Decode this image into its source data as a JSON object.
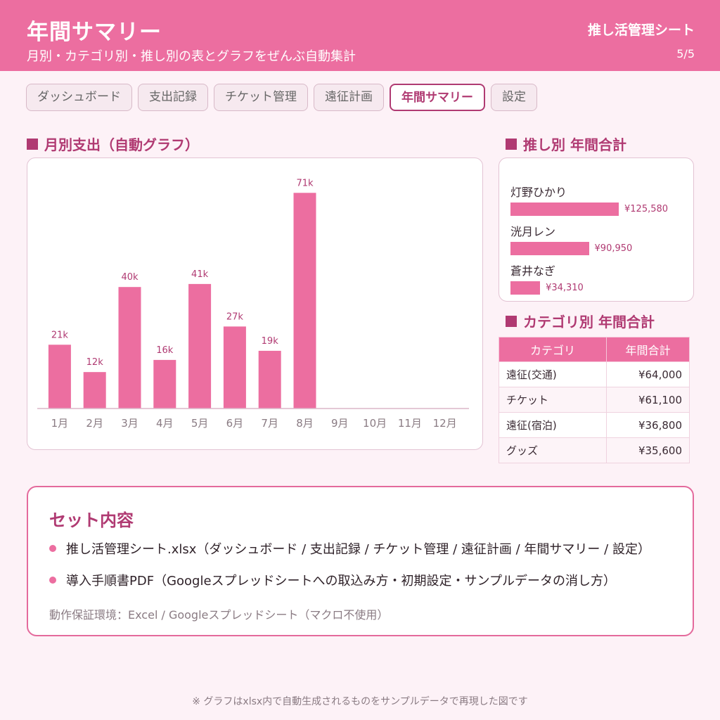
{
  "header": {
    "title": "年間サマリー",
    "subtitle": "月別・カテゴリ別・推し別の表とグラフをぜんぶ自動集計",
    "brand": "推し活管理シート",
    "page": "5/5"
  },
  "tabs": [
    {
      "label": "ダッシュボード",
      "active": false
    },
    {
      "label": "支出記録",
      "active": false
    },
    {
      "label": "チケット管理",
      "active": false
    },
    {
      "label": "遠征計画",
      "active": false
    },
    {
      "label": "年間サマリー",
      "active": true
    },
    {
      "label": "設定",
      "active": false
    }
  ],
  "sections": {
    "monthly": "月別支出（自動グラフ）",
    "oshi": "推し別 年間合計",
    "category": "カテゴリ別 年間合計"
  },
  "chart_data": {
    "type": "bar",
    "categories": [
      "1月",
      "2月",
      "3月",
      "4月",
      "5月",
      "6月",
      "7月",
      "8月",
      "9月",
      "10月",
      "11月",
      "12月"
    ],
    "values": [
      21,
      12,
      40,
      16,
      41,
      27,
      19,
      71,
      null,
      null,
      null,
      null
    ],
    "data_labels": [
      "21k",
      "12k",
      "40k",
      "16k",
      "41k",
      "27k",
      "19k",
      "71k",
      "",
      "",
      "",
      ""
    ],
    "title": "",
    "xlabel": "",
    "ylabel": "",
    "ylim": [
      0,
      75
    ],
    "grid": false,
    "color": "#ec6ea0"
  },
  "oshi": [
    {
      "name": "灯野ひかり",
      "amount": 125580,
      "amount_label": "¥125,580"
    },
    {
      "name": "洸月レン",
      "amount": 90950,
      "amount_label": "¥90,950"
    },
    {
      "name": "蒼井なぎ",
      "amount": 34310,
      "amount_label": "¥34,310"
    }
  ],
  "category_table": {
    "headers": [
      "カテゴリ",
      "年間合計"
    ],
    "rows": [
      [
        "遠征(交通)",
        "¥64,000"
      ],
      [
        "チケット",
        "¥61,100"
      ],
      [
        "遠征(宿泊)",
        "¥36,800"
      ],
      [
        "グッズ",
        "¥35,600"
      ]
    ]
  },
  "set_content": {
    "title": "セット内容",
    "items": [
      "推し活管理シート.xlsx（ダッシュボード / 支出記録 / チケット管理 / 遠征計画 / 年間サマリー / 設定）",
      "導入手順書PDF（Googleスプレッドシートへの取込み方・初期設定・サンプルデータの消し方）"
    ],
    "environment": "動作保証環境：Excel / Googleスプレッドシート（マクロ不使用）"
  },
  "footnote": "※ グラフはxlsx内で自動生成されるものをサンプルデータで再現した図です",
  "colors": {
    "accent": "#ec6ea0",
    "accent_dark": "#b03a72",
    "background": "#fdf2f7"
  }
}
